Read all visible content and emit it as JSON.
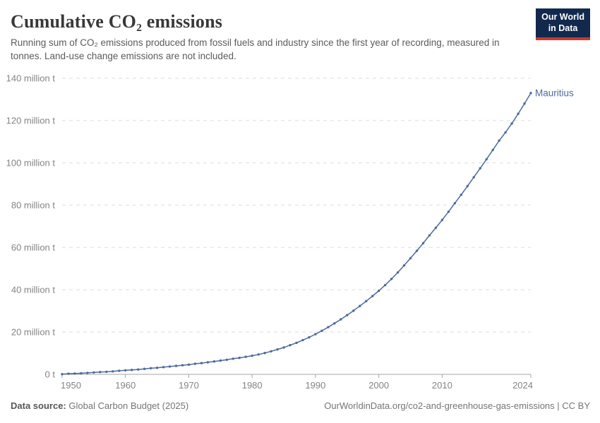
{
  "header": {
    "title": "Cumulative CO₂ emissions",
    "subtitle": "Running sum of CO₂ emissions produced from fossil fuels and industry since the first year of recording, measured in tonnes. Land-use change emissions are not included.",
    "logo": {
      "line1": "Our World",
      "line2": "in Data"
    }
  },
  "footer": {
    "source_label": "Data source:",
    "source_value": "Global Carbon Budget (2025)",
    "attribution": "OurWorldinData.org/co2-and-greenhouse-gas-emissions | CC BY"
  },
  "colors": {
    "line": "#4c6a9c",
    "grid": "#dcdcdc",
    "axis": "#a5a5a5",
    "tick_label": "#848484",
    "title": "#383838",
    "subtitle": "#5b5b5b",
    "logo_bg": "#12294e",
    "logo_stripe": "#d0352c"
  },
  "chart_data": {
    "type": "line",
    "title": "Cumulative CO₂ emissions",
    "unit": "tonnes",
    "xlabel": "",
    "ylabel": "",
    "xlim": [
      1950,
      2024
    ],
    "ylim": [
      0,
      140
    ],
    "grid": "horizontal-dashed",
    "legend_position": "end-of-line-label",
    "x": [
      1950,
      1951,
      1952,
      1953,
      1954,
      1955,
      1956,
      1957,
      1958,
      1959,
      1960,
      1961,
      1962,
      1963,
      1964,
      1965,
      1966,
      1967,
      1968,
      1969,
      1970,
      1971,
      1972,
      1973,
      1974,
      1975,
      1976,
      1977,
      1978,
      1979,
      1980,
      1981,
      1982,
      1983,
      1984,
      1985,
      1986,
      1987,
      1988,
      1989,
      1990,
      1991,
      1992,
      1993,
      1994,
      1995,
      1996,
      1997,
      1998,
      1999,
      2000,
      2001,
      2002,
      2003,
      2004,
      2005,
      2006,
      2007,
      2008,
      2009,
      2010,
      2011,
      2012,
      2013,
      2014,
      2015,
      2016,
      2017,
      2018,
      2019,
      2020,
      2021,
      2022,
      2023,
      2024
    ],
    "series": [
      {
        "name": "Mauritius",
        "values": [
          0.1,
          0.3,
          0.4,
          0.5,
          0.7,
          0.9,
          1.1,
          1.2,
          1.4,
          1.7,
          1.9,
          2.1,
          2.3,
          2.6,
          2.9,
          3.1,
          3.4,
          3.7,
          4.0,
          4.3,
          4.6,
          5.0,
          5.3,
          5.7,
          6.1,
          6.5,
          6.9,
          7.4,
          7.8,
          8.3,
          8.8,
          9.4,
          10.1,
          10.9,
          11.8,
          12.7,
          13.8,
          14.9,
          16.2,
          17.5,
          19.0,
          20.6,
          22.3,
          24.1,
          26.0,
          28.0,
          30.1,
          32.3,
          34.6,
          37.0,
          39.5,
          42.2,
          45.1,
          48.2,
          51.5,
          54.9,
          58.4,
          62.0,
          65.7,
          69.3,
          73.0,
          76.9,
          80.9,
          84.9,
          89.0,
          93.2,
          97.4,
          101.7,
          106.1,
          110.5,
          114.4,
          118.6,
          123.2,
          128.0,
          133.0
        ]
      }
    ],
    "yticks": [
      {
        "value": 0,
        "label": "0 t"
      },
      {
        "value": 20,
        "label": "20 million t"
      },
      {
        "value": 40,
        "label": "40 million t"
      },
      {
        "value": 60,
        "label": "60 million t"
      },
      {
        "value": 80,
        "label": "80 million t"
      },
      {
        "value": 100,
        "label": "100 million t"
      },
      {
        "value": 120,
        "label": "120 million t"
      },
      {
        "value": 140,
        "label": "140 million t"
      }
    ],
    "xticks": [
      {
        "value": 1950,
        "label": "1950"
      },
      {
        "value": 1960,
        "label": "1960"
      },
      {
        "value": 1970,
        "label": "1970"
      },
      {
        "value": 1980,
        "label": "1980"
      },
      {
        "value": 1990,
        "label": "1990"
      },
      {
        "value": 2000,
        "label": "2000"
      },
      {
        "value": 2010,
        "label": "2010"
      },
      {
        "value": 2024,
        "label": "2024"
      }
    ]
  }
}
